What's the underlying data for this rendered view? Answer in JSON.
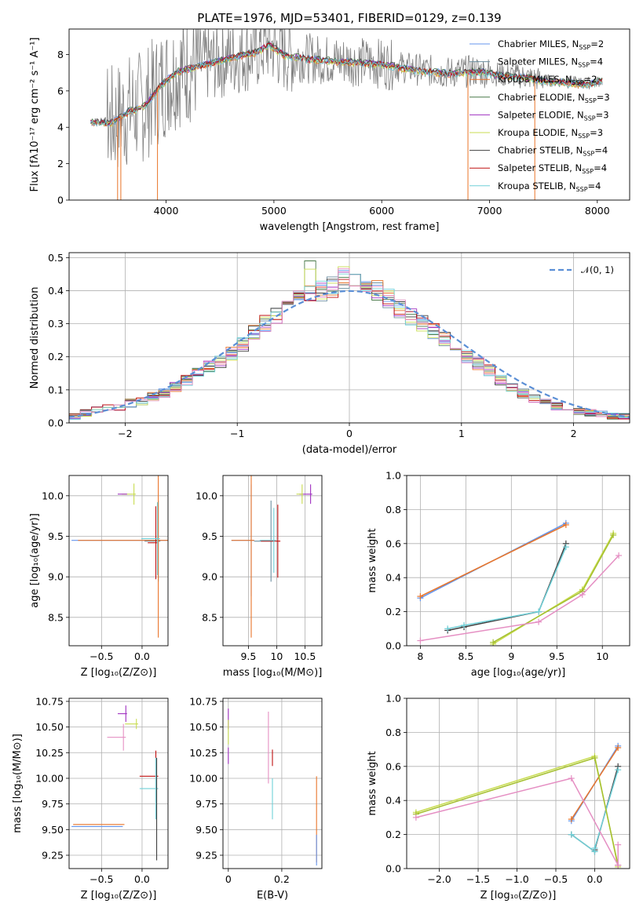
{
  "figure_title": "PLATE=1976, MJD=53401, FIBERID=0129, z=0.139",
  "colors": {
    "data": "#808080",
    "chabrier_miles": "#6495ed",
    "salpeter_miles": "#6b8e9f",
    "kroupa_miles": "#e9752a",
    "chabrier_elodie": "#4a7a4a",
    "salpeter_elodie": "#a030c0",
    "kroupa_elodie": "#c8dc50",
    "chabrier_stelib": "#404040",
    "salpeter_stelib": "#c01010",
    "kroupa_stelib": "#70d0d8",
    "normal": "#5b8fd6"
  },
  "legend_models": [
    {
      "label": "Chabrier MILES, N",
      "sub": "SSP",
      "suffix": "=2",
      "color": "#6495ed"
    },
    {
      "label": "Salpeter MILES, N",
      "sub": "SSP",
      "suffix": "=4",
      "color": "#6b8e9f"
    },
    {
      "label": "Kroupa MILES, N",
      "sub": "SSP",
      "suffix": "=2",
      "color": "#e9752a"
    },
    {
      "label": "Chabrier ELODIE, N",
      "sub": "SSP",
      "suffix": "=3",
      "color": "#4a7a4a"
    },
    {
      "label": "Salpeter ELODIE, N",
      "sub": "SSP",
      "suffix": "=3",
      "color": "#a030c0"
    },
    {
      "label": "Kroupa ELODIE, N",
      "sub": "SSP",
      "suffix": "=3",
      "color": "#c8dc50"
    },
    {
      "label": "Chabrier STELIB, N",
      "sub": "SSP",
      "suffix": "=4",
      "color": "#404040"
    },
    {
      "label": "Salpeter STELIB, N",
      "sub": "SSP",
      "suffix": "=4",
      "color": "#c01010"
    },
    {
      "label": "Kroupa STELIB, N",
      "sub": "SSP",
      "suffix": "=4",
      "color": "#70d0d8"
    }
  ],
  "chart_data": [
    {
      "id": "spectrum",
      "type": "line",
      "xlabel": "wavelength [Angstrom, rest frame]",
      "ylabel": "Flux [fλ10⁻¹⁷ erg cm⁻² s⁻¹ A⁻¹]",
      "xlim": [
        3100,
        8300
      ],
      "ylim": [
        0,
        9.4
      ],
      "xticks": [
        4000,
        5000,
        6000,
        7000,
        8000
      ],
      "yticks": [
        0,
        2,
        4,
        6,
        8
      ],
      "continuum": {
        "x": [
          3300,
          3500,
          3650,
          3800,
          3950,
          4100,
          4300,
          4500,
          4700,
          4850,
          4950,
          5100,
          5300,
          5500,
          5800,
          6000,
          6300,
          6600,
          6900,
          7100,
          7300,
          7500,
          7700,
          7900,
          8050
        ],
        "y": [
          4.3,
          4.3,
          4.9,
          5.2,
          6.3,
          7.1,
          7.4,
          7.7,
          8.0,
          8.2,
          8.6,
          8.0,
          7.8,
          7.7,
          7.6,
          7.5,
          7.2,
          7.0,
          7.1,
          6.9,
          6.8,
          6.6,
          6.5,
          6.4,
          6.6
        ]
      }
    },
    {
      "id": "residuals",
      "type": "histogram",
      "xlabel": "(data-model)/error",
      "ylabel": "Normed distribution",
      "xlim": [
        -2.5,
        2.5
      ],
      "ylim": [
        0,
        0.515
      ],
      "xticks": [
        -2,
        -1,
        0,
        1,
        2
      ],
      "yticks": [
        0.0,
        0.1,
        0.2,
        0.3,
        0.4,
        0.5
      ],
      "legend": "𝒩(0, 1)",
      "bin_width": 0.1,
      "bin_start": -2.5,
      "base_values": [
        0.02,
        0.03,
        0.04,
        0.045,
        0.05,
        0.06,
        0.065,
        0.08,
        0.09,
        0.11,
        0.13,
        0.155,
        0.17,
        0.185,
        0.21,
        0.235,
        0.27,
        0.3,
        0.32,
        0.34,
        0.38,
        0.39,
        0.4,
        0.41,
        0.44,
        0.43,
        0.41,
        0.4,
        0.38,
        0.345,
        0.32,
        0.3,
        0.28,
        0.25,
        0.22,
        0.2,
        0.18,
        0.16,
        0.13,
        0.11,
        0.09,
        0.075,
        0.06,
        0.05,
        0.04,
        0.035,
        0.03,
        0.025,
        0.02,
        0.02
      ]
    },
    {
      "id": "age_vs_Z",
      "type": "errorbar",
      "xlabel": "Z [log₁₀(Z/Z⊙)]",
      "ylabel": "age  [log₁₀(age/yr)]",
      "xlim": [
        -0.9,
        0.32
      ],
      "ylim": [
        8.15,
        10.25
      ],
      "xticks": [
        -0.5,
        0.0
      ],
      "xticklabels": [
        "−0.5",
        "0.0"
      ],
      "yticks": [
        8.5,
        9.0,
        9.5,
        10.0
      ],
      "points": [
        {
          "x": 0.18,
          "y": 9.45,
          "xerr": 1.05,
          "yerr": 0.0,
          "color": "#6495ed"
        },
        {
          "x": 0.2,
          "y": 9.44,
          "xerr": 0.17,
          "yerr": 0.5,
          "color": "#6b8e9f"
        },
        {
          "x": 0.2,
          "y": 9.45,
          "xerr": 0.99,
          "yerr": 1.2,
          "color": "#e9752a"
        },
        {
          "x": -0.1,
          "y": 10.02,
          "xerr": 0.15,
          "yerr": 0.13,
          "color": "#c8dc50"
        },
        {
          "x": -0.2,
          "y": 10.02,
          "xerr": 0.1,
          "yerr": 0.0,
          "color": "#a030c0"
        },
        {
          "x": 0.17,
          "y": 9.42,
          "xerr": 0.1,
          "yerr": 0.45,
          "color": "#c01010"
        },
        {
          "x": 0.19,
          "y": 9.47,
          "xerr": 0.2,
          "yerr": 0.45,
          "color": "#70d0d8"
        }
      ]
    },
    {
      "id": "age_vs_mass",
      "type": "errorbar",
      "xlabel": "mass [log₁₀(M/M⊙)]",
      "ylabel": "",
      "xlim": [
        9.05,
        10.8
      ],
      "ylim": [
        8.15,
        10.25
      ],
      "xticks": [
        9.5,
        10.0,
        10.5
      ],
      "yticks": [
        8.5,
        9.0,
        9.5,
        10.0
      ],
      "points": [
        {
          "x": 9.55,
          "y": 9.45,
          "xerr": 0.35,
          "yerr": 0.69,
          "color": "#6495ed"
        },
        {
          "x": 9.9,
          "y": 9.44,
          "xerr": 0.3,
          "yerr": 0.5,
          "color": "#6b8e9f"
        },
        {
          "x": 9.55,
          "y": 9.45,
          "xerr": 0.35,
          "yerr": 1.2,
          "color": "#e9752a"
        },
        {
          "x": 10.6,
          "y": 10.02,
          "xerr": 0.2,
          "yerr": 0.12,
          "color": "#a030c0"
        },
        {
          "x": 10.45,
          "y": 10.02,
          "xerr": 0.1,
          "yerr": 0.12,
          "color": "#c8dc50"
        },
        {
          "x": 10.02,
          "y": 9.44,
          "xerr": 0.3,
          "yerr": 0.45,
          "color": "#c01010"
        },
        {
          "x": 9.95,
          "y": 9.45,
          "xerr": 0.25,
          "yerr": 0.4,
          "color": "#70d0d8"
        }
      ]
    },
    {
      "id": "weight_vs_age",
      "type": "line",
      "xlabel": "age  [log₁₀(age/yr)]",
      "ylabel": "mass weight",
      "xlim": [
        7.85,
        10.3
      ],
      "ylim": [
        0,
        1.0
      ],
      "xticks": [
        8.0,
        8.5,
        9.0,
        9.5,
        10.0
      ],
      "yticks": [
        0.0,
        0.2,
        0.4,
        0.6,
        0.8,
        1.0
      ],
      "series": [
        {
          "color": "#6495ed",
          "x": [
            8.0,
            9.6
          ],
          "y": [
            0.28,
            0.72
          ]
        },
        {
          "color": "#e9752a",
          "x": [
            8.0,
            9.6
          ],
          "y": [
            0.29,
            0.71
          ]
        },
        {
          "color": "#404040",
          "x": [
            8.3,
            8.48,
            9.3,
            9.6
          ],
          "y": [
            0.09,
            0.11,
            0.2,
            0.6
          ]
        },
        {
          "color": "#70d0d8",
          "x": [
            8.3,
            8.48,
            9.3,
            9.6
          ],
          "y": [
            0.1,
            0.12,
            0.2,
            0.58
          ]
        },
        {
          "color": "#c8dc50",
          "x": [
            8.8,
            9.78,
            10.12
          ],
          "y": [
            0.01,
            0.33,
            0.66
          ]
        },
        {
          "color": "#a5c030",
          "x": [
            8.8,
            9.78,
            10.12
          ],
          "y": [
            0.02,
            0.32,
            0.65
          ]
        },
        {
          "color": "#e58fc3",
          "x": [
            8.0,
            9.3,
            9.78,
            10.18
          ],
          "y": [
            0.03,
            0.14,
            0.3,
            0.53
          ]
        }
      ]
    },
    {
      "id": "mass_vs_Z",
      "type": "errorbar",
      "xlabel": "Z [log₁₀(Z/Z⊙)]",
      "ylabel": "mass [log₁₀(M/M⊙)]",
      "xlim": [
        -0.9,
        0.32
      ],
      "ylim": [
        9.12,
        10.78
      ],
      "xticks": [
        -0.5,
        0.0
      ],
      "xticklabels": [
        "−0.5",
        "0.0"
      ],
      "yticks": [
        9.25,
        9.5,
        9.75,
        10.0,
        10.25,
        10.5,
        10.75
      ],
      "points": [
        {
          "x": -0.32,
          "y": 9.53,
          "xerr": 0.55,
          "yerr": 0.0,
          "color": "#6495ed"
        },
        {
          "x": -0.3,
          "y": 9.55,
          "xerr": 0.55,
          "yerr": 0.0,
          "color": "#e9752a"
        },
        {
          "x": -0.2,
          "y": 10.63,
          "xerr": 0.1,
          "yerr": 0.08,
          "color": "#a030c0"
        },
        {
          "x": -0.07,
          "y": 10.53,
          "xerr": 0.14,
          "yerr": 0.05,
          "color": "#c8dc50"
        },
        {
          "x": -0.23,
          "y": 10.4,
          "xerr": 0.2,
          "yerr": 0.13,
          "color": "#e58fc3"
        },
        {
          "x": 0.17,
          "y": 10.02,
          "xerr": 0.2,
          "yerr": 0.25,
          "color": "#c01010"
        },
        {
          "x": 0.17,
          "y": 9.9,
          "xerr": 0.2,
          "yerr": 0.3,
          "color": "#70d0d8"
        },
        {
          "x": 0.18,
          "y": 9.7,
          "xerr": 0.0,
          "yerr": 0.5,
          "color": "#404040"
        }
      ]
    },
    {
      "id": "mass_vs_ebv",
      "type": "errorbar",
      "xlabel": "E(B-V)",
      "ylabel": "",
      "xlim": [
        -0.02,
        0.35
      ],
      "ylim": [
        9.12,
        10.78
      ],
      "xticks": [
        0.0,
        0.2
      ],
      "yticks": [
        9.25,
        9.5,
        9.75,
        10.0,
        10.25,
        10.5,
        10.75
      ],
      "points": [
        {
          "x": 0.0,
          "y": 10.58,
          "xerr": 0.0,
          "yerr": 0.1,
          "color": "#a030c0"
        },
        {
          "x": 0.0,
          "y": 10.45,
          "xerr": 0.0,
          "yerr": 0.12,
          "color": "#c8dc50"
        },
        {
          "x": 0.0,
          "y": 10.22,
          "xerr": 0.0,
          "yerr": 0.08,
          "color": "#a030c0"
        },
        {
          "x": 0.15,
          "y": 10.3,
          "xerr": 0.0,
          "yerr": 0.35,
          "color": "#e58fc3"
        },
        {
          "x": 0.165,
          "y": 10.2,
          "xerr": 0.0,
          "yerr": 0.08,
          "color": "#c01010"
        },
        {
          "x": 0.165,
          "y": 9.8,
          "xerr": 0.0,
          "yerr": 0.2,
          "color": "#70d0d8"
        },
        {
          "x": 0.33,
          "y": 9.6,
          "xerr": 0.0,
          "yerr": 0.42,
          "color": "#e9752a"
        },
        {
          "x": 0.33,
          "y": 9.3,
          "xerr": 0.0,
          "yerr": 0.15,
          "color": "#6495ed"
        }
      ]
    },
    {
      "id": "weight_vs_Z",
      "type": "line",
      "xlabel": "Z [log₁₀(Z/Z⊙)]",
      "ylabel": "mass weight",
      "xlim": [
        -2.42,
        0.45
      ],
      "ylim": [
        0,
        1.0
      ],
      "xticks": [
        -2.0,
        -1.5,
        -1.0,
        -0.5,
        0.0
      ],
      "xticklabels": [
        "−2.0",
        "−1.5",
        "−1.0",
        "−0.5",
        "0.0"
      ],
      "yticks": [
        0.0,
        0.2,
        0.4,
        0.6,
        0.8,
        1.0
      ],
      "series": [
        {
          "color": "#6495ed",
          "x": [
            -0.3,
            0.3
          ],
          "y": [
            0.28,
            0.72
          ]
        },
        {
          "color": "#e9752a",
          "x": [
            -0.3,
            0.3
          ],
          "y": [
            0.29,
            0.71
          ]
        },
        {
          "color": "#404040",
          "x": [
            -0.3,
            0.0,
            0.0,
            0.3
          ],
          "y": [
            0.2,
            0.1,
            0.11,
            0.6
          ]
        },
        {
          "color": "#70d0d8",
          "x": [
            -0.3,
            0.0,
            0.0,
            0.3
          ],
          "y": [
            0.2,
            0.1,
            0.12,
            0.58
          ]
        },
        {
          "color": "#c8dc50",
          "x": [
            -2.3,
            0.0,
            0.3
          ],
          "y": [
            0.33,
            0.66,
            0.01
          ]
        },
        {
          "color": "#a5c030",
          "x": [
            -2.3,
            0.0,
            0.3
          ],
          "y": [
            0.32,
            0.65,
            0.02
          ]
        },
        {
          "color": "#e58fc3",
          "x": [
            -2.3,
            -0.3,
            0.3
          ],
          "y": [
            0.3,
            0.53,
            0.02
          ]
        },
        {
          "color": "#e58fc3",
          "x": [
            0.3,
            0.3
          ],
          "y": [
            0.02,
            0.14
          ]
        }
      ]
    }
  ]
}
